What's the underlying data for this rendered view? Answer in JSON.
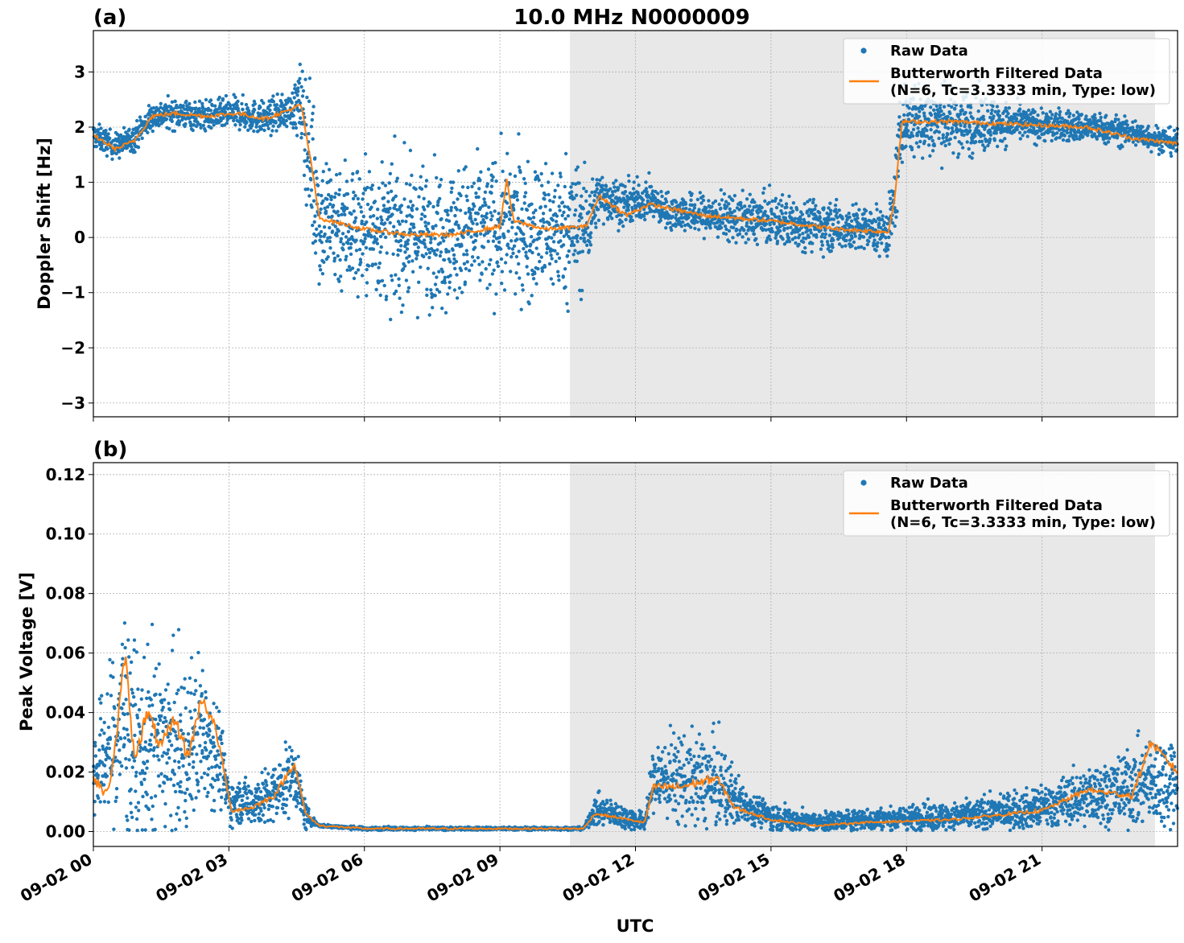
{
  "figure": {
    "title": "10.0 MHz N0000009",
    "xlabel": "UTC"
  },
  "colors": {
    "raw": "#1f77b4",
    "filtered": "#ff7f0e",
    "shade": "#e8e8e8",
    "grid": "#b0b0b0"
  },
  "chart_data": [
    {
      "type": "scatter",
      "panel_label": "(a)",
      "ylabel": "Doppler Shift [Hz]",
      "xlim_hours": [
        0,
        24
      ],
      "x_tick_hours": [
        0,
        3,
        6,
        9,
        12,
        15,
        18,
        21
      ],
      "ylim": [
        -3.25,
        3.75
      ],
      "y_ticks": [
        3,
        2,
        1,
        0,
        -1,
        -2,
        -3
      ],
      "y_tick_labels": [
        "3",
        "2",
        "1",
        "0",
        "−1",
        "−2",
        "−3"
      ],
      "grid": true,
      "legend_position": "top-right",
      "shaded_region_hours": [
        10.55,
        23.5
      ],
      "series": [
        {
          "name": "Raw Data",
          "kind": "points",
          "profile": [
            [
              0,
              1.85
            ],
            [
              0.5,
              1.65
            ],
            [
              0.9,
              1.8
            ],
            [
              1.3,
              2.2
            ],
            [
              1.8,
              2.25
            ],
            [
              2.5,
              2.2
            ],
            [
              3.2,
              2.25
            ],
            [
              3.8,
              2.15
            ],
            [
              4.3,
              2.3
            ],
            [
              4.6,
              2.4
            ],
            [
              4.85,
              1.2
            ],
            [
              5.0,
              0.35
            ],
            [
              6.0,
              0.15
            ],
            [
              7.0,
              0.05
            ],
            [
              8.0,
              0.05
            ],
            [
              9.0,
              0.2
            ],
            [
              10.0,
              0.15
            ],
            [
              10.9,
              0.2
            ],
            [
              11.2,
              0.75
            ],
            [
              11.8,
              0.6
            ],
            [
              12.3,
              0.7
            ],
            [
              12.6,
              0.5
            ],
            [
              13.5,
              0.4
            ],
            [
              15.0,
              0.3
            ],
            [
              16.5,
              0.2
            ],
            [
              17.6,
              0.1
            ],
            [
              17.75,
              0.8
            ],
            [
              17.9,
              2.1
            ],
            [
              19.0,
              2.1
            ],
            [
              20.5,
              2.05
            ],
            [
              22.0,
              2.0
            ],
            [
              23.0,
              1.9
            ],
            [
              24.0,
              1.7
            ]
          ],
          "spread": [
            [
              0,
              0.22
            ],
            [
              4.4,
              0.3
            ],
            [
              4.9,
              1.5
            ],
            [
              5.0,
              1.2
            ],
            [
              10.8,
              1.2
            ],
            [
              11.1,
              0.45
            ],
            [
              12.6,
              0.3
            ],
            [
              14.0,
              0.4
            ],
            [
              15.5,
              0.45
            ],
            [
              17.5,
              0.4
            ],
            [
              17.8,
              0.7
            ],
            [
              19.5,
              0.55
            ],
            [
              20.5,
              0.3
            ],
            [
              24.0,
              0.22
            ]
          ]
        },
        {
          "name": "Butterworth Filtered Data\n(N=6, Tc=3.3333 min, Type: low)",
          "kind": "line",
          "profile": [
            [
              0,
              1.85
            ],
            [
              0.5,
              1.6
            ],
            [
              0.9,
              1.75
            ],
            [
              1.3,
              2.2
            ],
            [
              1.8,
              2.25
            ],
            [
              2.5,
              2.2
            ],
            [
              3.2,
              2.25
            ],
            [
              3.8,
              2.15
            ],
            [
              4.3,
              2.3
            ],
            [
              4.6,
              2.4
            ],
            [
              4.85,
              1.2
            ],
            [
              5.0,
              0.35
            ],
            [
              6.0,
              0.15
            ],
            [
              7.0,
              0.05
            ],
            [
              8.0,
              0.05
            ],
            [
              9.0,
              0.2
            ],
            [
              9.15,
              1.05
            ],
            [
              9.3,
              0.3
            ],
            [
              10.0,
              0.15
            ],
            [
              10.9,
              0.2
            ],
            [
              11.2,
              0.75
            ],
            [
              11.8,
              0.4
            ],
            [
              12.3,
              0.6
            ],
            [
              12.6,
              0.55
            ],
            [
              13.5,
              0.4
            ],
            [
              15.0,
              0.3
            ],
            [
              16.5,
              0.15
            ],
            [
              17.6,
              0.1
            ],
            [
              17.75,
              0.8
            ],
            [
              17.9,
              2.1
            ],
            [
              19.0,
              2.1
            ],
            [
              20.5,
              2.05
            ],
            [
              22.0,
              2.0
            ],
            [
              23.0,
              1.8
            ],
            [
              24.0,
              1.7
            ]
          ]
        }
      ]
    },
    {
      "type": "scatter",
      "panel_label": "(b)",
      "ylabel": "Peak Voltage [V]",
      "xlim_hours": [
        0,
        24
      ],
      "x_tick_hours": [
        0,
        3,
        6,
        9,
        12,
        15,
        18,
        21
      ],
      "x_tick_labels": [
        "09-02 00",
        "09-02 03",
        "09-02 06",
        "09-02 09",
        "09-02 12",
        "09-02 15",
        "09-02 18",
        "09-02 21"
      ],
      "ylim": [
        -0.005,
        0.124
      ],
      "y_ticks": [
        0.12,
        0.1,
        0.08,
        0.06,
        0.04,
        0.02,
        0.0
      ],
      "y_tick_labels": [
        "0.12",
        "0.10",
        "0.08",
        "0.06",
        "0.04",
        "0.02",
        "0.00"
      ],
      "grid": true,
      "legend_position": "top-right",
      "shaded_region_hours": [
        10.55,
        23.5
      ],
      "series": [
        {
          "name": "Raw Data",
          "kind": "points",
          "profile": [
            [
              0,
              0.02
            ],
            [
              0.4,
              0.03
            ],
            [
              0.7,
              0.04
            ],
            [
              1.0,
              0.025
            ],
            [
              1.5,
              0.03
            ],
            [
              2.0,
              0.025
            ],
            [
              2.4,
              0.035
            ],
            [
              2.8,
              0.025
            ],
            [
              3.0,
              0.01
            ],
            [
              3.5,
              0.01
            ],
            [
              4.0,
              0.012
            ],
            [
              4.45,
              0.02
            ],
            [
              4.7,
              0.005
            ],
            [
              5.0,
              0.002
            ],
            [
              6.0,
              0.001
            ],
            [
              10.85,
              0.001
            ],
            [
              11.1,
              0.007
            ],
            [
              11.5,
              0.006
            ],
            [
              12.2,
              0.003
            ],
            [
              12.4,
              0.018
            ],
            [
              13.0,
              0.018
            ],
            [
              13.8,
              0.016
            ],
            [
              14.3,
              0.01
            ],
            [
              15.0,
              0.005
            ],
            [
              16.0,
              0.003
            ],
            [
              17.0,
              0.004
            ],
            [
              19.0,
              0.005
            ],
            [
              21.0,
              0.008
            ],
            [
              22.0,
              0.012
            ],
            [
              23.0,
              0.015
            ],
            [
              24.0,
              0.018
            ]
          ],
          "spread": [
            [
              0,
              0.015
            ],
            [
              0.7,
              0.035
            ],
            [
              2.4,
              0.025
            ],
            [
              2.9,
              0.012
            ],
            [
              3.1,
              0.006
            ],
            [
              4.4,
              0.012
            ],
            [
              4.8,
              0.002
            ],
            [
              5.0,
              0.0005
            ],
            [
              10.9,
              0.0005
            ],
            [
              11.1,
              0.005
            ],
            [
              12.2,
              0.003
            ],
            [
              12.5,
              0.014
            ],
            [
              13.8,
              0.015
            ],
            [
              14.5,
              0.005
            ],
            [
              16.0,
              0.003
            ],
            [
              20.0,
              0.005
            ],
            [
              22.0,
              0.009
            ],
            [
              24.0,
              0.016
            ]
          ]
        },
        {
          "name": "Butterworth Filtered Data\n(N=6, Tc=3.3333 min, Type: low)",
          "kind": "line",
          "profile": [
            [
              0,
              0.018
            ],
            [
              0.3,
              0.012
            ],
            [
              0.5,
              0.03
            ],
            [
              0.7,
              0.06
            ],
            [
              0.9,
              0.025
            ],
            [
              1.2,
              0.04
            ],
            [
              1.5,
              0.028
            ],
            [
              1.8,
              0.038
            ],
            [
              2.1,
              0.025
            ],
            [
              2.4,
              0.045
            ],
            [
              2.7,
              0.035
            ],
            [
              2.9,
              0.02
            ],
            [
              3.05,
              0.007
            ],
            [
              3.5,
              0.008
            ],
            [
              4.0,
              0.012
            ],
            [
              4.45,
              0.023
            ],
            [
              4.7,
              0.006
            ],
            [
              5.0,
              0.002
            ],
            [
              6.0,
              0.001
            ],
            [
              10.85,
              0.001
            ],
            [
              11.1,
              0.006
            ],
            [
              11.5,
              0.005
            ],
            [
              12.2,
              0.003
            ],
            [
              12.4,
              0.015
            ],
            [
              13.0,
              0.015
            ],
            [
              13.8,
              0.018
            ],
            [
              14.2,
              0.008
            ],
            [
              15.0,
              0.004
            ],
            [
              16.0,
              0.002
            ],
            [
              17.0,
              0.003
            ],
            [
              19.0,
              0.004
            ],
            [
              21.0,
              0.007
            ],
            [
              22.0,
              0.014
            ],
            [
              23.0,
              0.012
            ],
            [
              23.4,
              0.03
            ],
            [
              24.0,
              0.02
            ]
          ]
        }
      ]
    }
  ]
}
